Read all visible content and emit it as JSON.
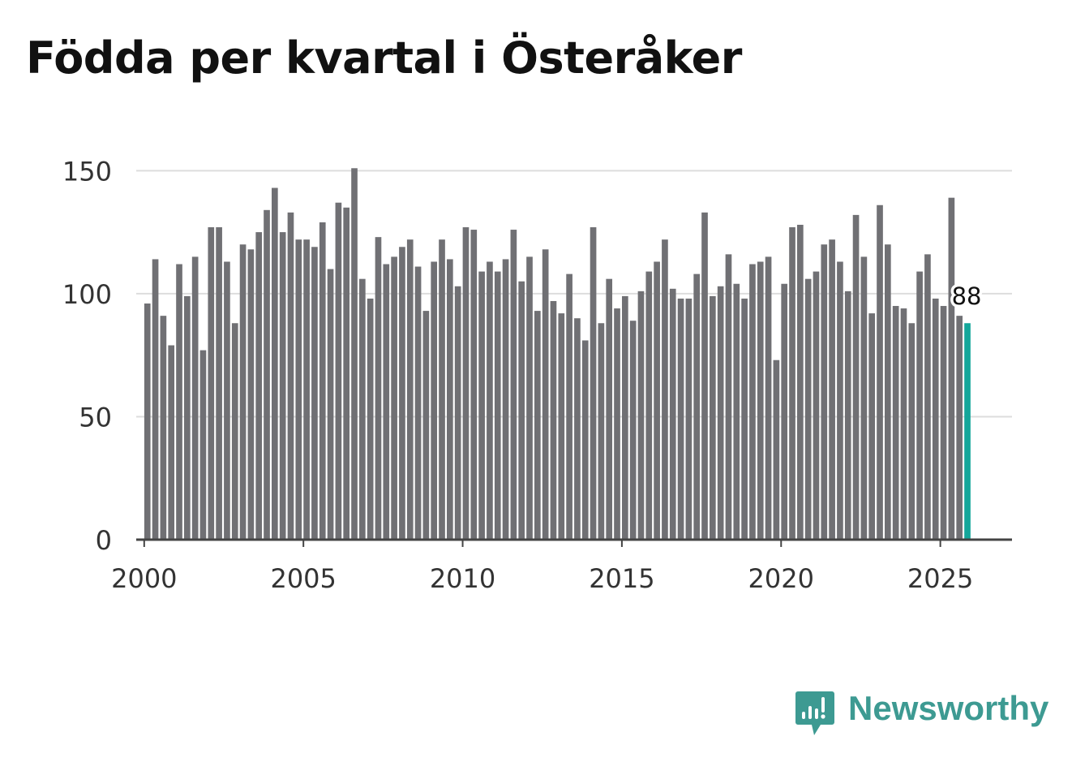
{
  "title": "Födda per kvartal i Österåker",
  "brand": {
    "name": "Newsworthy",
    "logo_icon": "bar-chart-speech-bubble-icon",
    "color": "#3d9a92"
  },
  "colors": {
    "bar": "#707074",
    "highlight": "#13a69a",
    "grid": "#dddddd",
    "axis": "#444444",
    "text": "#333333"
  },
  "chart_data": {
    "type": "bar",
    "title": "Födda per kvartal i Österåker",
    "xlabel": "",
    "ylabel": "",
    "ylim": [
      0,
      160
    ],
    "yticks": [
      0,
      50,
      100,
      150
    ],
    "xlim": [
      1999.75,
      2027.25
    ],
    "xticks": [
      2000,
      2005,
      2010,
      2015,
      2020,
      2025
    ],
    "grid": true,
    "start_year": 2000,
    "values": [
      96,
      114,
      91,
      79,
      112,
      99,
      115,
      77,
      127,
      127,
      113,
      88,
      120,
      118,
      125,
      134,
      143,
      125,
      133,
      122,
      122,
      119,
      129,
      110,
      137,
      135,
      151,
      106,
      98,
      123,
      112,
      115,
      119,
      122,
      111,
      93,
      113,
      122,
      114,
      103,
      127,
      126,
      109,
      113,
      109,
      114,
      126,
      105,
      115,
      93,
      118,
      97,
      92,
      108,
      90,
      81,
      127,
      88,
      106,
      94,
      99,
      89,
      101,
      109,
      113,
      122,
      102,
      98,
      98,
      108,
      133,
      99,
      103,
      116,
      104,
      98,
      112,
      113,
      115,
      73,
      104,
      127,
      128,
      106,
      109,
      120,
      122,
      113,
      101,
      132,
      115,
      92,
      136,
      120,
      95,
      94,
      88,
      109,
      116,
      98,
      95,
      139,
      91,
      88
    ],
    "highlight": {
      "label": "88",
      "value": 88
    }
  }
}
